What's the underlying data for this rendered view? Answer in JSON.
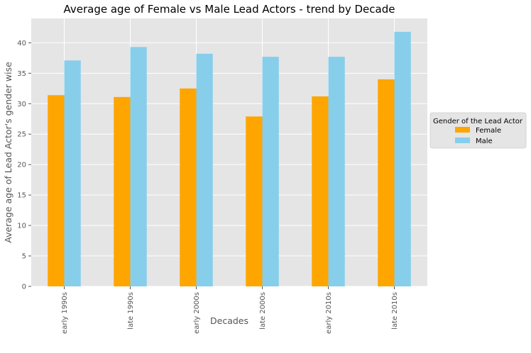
{
  "chart_data": {
    "type": "bar",
    "title": "Average age of Female vs Male Lead Actors - trend by Decade",
    "xlabel": "Decades",
    "ylabel": "Average age of Lead Actor's gender wise",
    "categories": [
      "early 1990s",
      "late 1990s",
      "early 2000s",
      "late 2000s",
      "early 2010s",
      "late 2010s"
    ],
    "series": [
      {
        "name": "Female",
        "color": "#FFA500",
        "values": [
          31.4,
          31.1,
          32.5,
          27.9,
          31.2,
          34.0
        ]
      },
      {
        "name": "Male",
        "color": "#87CEEB",
        "values": [
          37.1,
          39.3,
          38.2,
          37.7,
          37.7,
          41.8
        ]
      }
    ],
    "ylim": [
      0,
      44
    ],
    "yticks": [
      0,
      5,
      10,
      15,
      20,
      25,
      30,
      35,
      40
    ],
    "grid": true,
    "legend": {
      "title": "Gender of the Lead Actor",
      "placement": "right"
    }
  }
}
